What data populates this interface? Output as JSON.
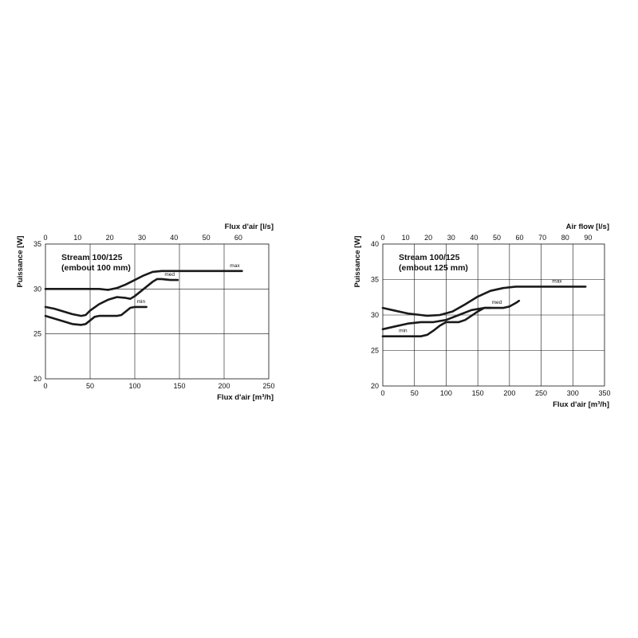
{
  "chart_data": [
    {
      "type": "line",
      "title_lines": [
        "Stream 100/125",
        "(embout 100 mm)"
      ],
      "xlabel": "Flux d'air [m³/h]",
      "x2label": "Flux d'air [l/s]",
      "ylabel": "Puissance [W]",
      "xlim": [
        0,
        250
      ],
      "ylim": [
        20,
        35
      ],
      "xticks": [
        0,
        50,
        100,
        150,
        200,
        250
      ],
      "yticks": [
        20,
        25,
        30,
        35
      ],
      "x2ticks": [
        0,
        10,
        20,
        30,
        40,
        50,
        60
      ],
      "grid": true,
      "series": [
        {
          "name": "max",
          "x": [
            0,
            20,
            40,
            60,
            70,
            80,
            90,
            100,
            110,
            120,
            130,
            140,
            160,
            180,
            200,
            220
          ],
          "y": [
            30,
            30,
            30,
            30,
            29.9,
            30.1,
            30.5,
            31,
            31.5,
            31.9,
            32,
            32,
            32,
            32,
            32,
            32
          ]
        },
        {
          "name": "med",
          "x": [
            0,
            10,
            20,
            30,
            40,
            45,
            50,
            60,
            70,
            80,
            90,
            95,
            100,
            110,
            120,
            125,
            130,
            140,
            148
          ],
          "y": [
            28,
            27.8,
            27.5,
            27.2,
            27,
            27.1,
            27.6,
            28.3,
            28.8,
            29.1,
            29,
            28.9,
            29.2,
            30,
            30.8,
            31.1,
            31.1,
            31,
            31
          ]
        },
        {
          "name": "min",
          "x": [
            0,
            10,
            20,
            30,
            40,
            45,
            50,
            55,
            60,
            70,
            80,
            85,
            90,
            95,
            100,
            105,
            110,
            113
          ],
          "y": [
            27,
            26.7,
            26.4,
            26.1,
            26,
            26.1,
            26.5,
            26.9,
            27,
            27,
            27,
            27.1,
            27.5,
            27.9,
            28,
            28,
            28,
            28
          ]
        }
      ],
      "labels": [
        {
          "text": "max",
          "x": 212,
          "y": 32
        },
        {
          "text": "med",
          "x": 139,
          "y": 31
        },
        {
          "text": "min",
          "x": 107,
          "y": 28
        }
      ]
    },
    {
      "type": "line",
      "title_lines": [
        "Stream 100/125",
        "(embout 125 mm)"
      ],
      "xlabel": "Flux d'air [m³/h]",
      "x2label": "Air flow [l/s]",
      "ylabel": "Puissance [W]",
      "xlim": [
        0,
        350
      ],
      "ylim": [
        20,
        40
      ],
      "xticks": [
        0,
        50,
        100,
        150,
        200,
        250,
        300,
        350
      ],
      "yticks": [
        20,
        25,
        30,
        35,
        40
      ],
      "x2ticks": [
        0,
        10,
        20,
        30,
        40,
        50,
        60,
        70,
        80,
        90
      ],
      "grid": true,
      "series": [
        {
          "name": "max",
          "x": [
            0,
            20,
            40,
            60,
            70,
            90,
            110,
            130,
            150,
            170,
            190,
            210,
            230,
            260,
            290,
            320
          ],
          "y": [
            31,
            30.6,
            30.2,
            30,
            29.9,
            30,
            30.5,
            31.5,
            32.6,
            33.4,
            33.8,
            34,
            34,
            34,
            34,
            34
          ]
        },
        {
          "name": "med",
          "x": [
            0,
            20,
            40,
            60,
            80,
            100,
            120,
            140,
            160,
            175,
            190,
            200,
            210,
            215
          ],
          "y": [
            28,
            28.4,
            28.8,
            29,
            29,
            29.3,
            30,
            30.7,
            31,
            31,
            31,
            31.2,
            31.7,
            32
          ]
        },
        {
          "name": "min",
          "x": [
            0,
            20,
            40,
            60,
            70,
            80,
            90,
            100,
            110,
            120,
            130,
            140,
            150,
            160,
            170
          ],
          "y": [
            27,
            27,
            27,
            27,
            27.2,
            27.8,
            28.5,
            29,
            29,
            29,
            29.3,
            29.9,
            30.5,
            31,
            31
          ]
        }
      ],
      "labels": [
        {
          "text": "max",
          "x": 275,
          "y": 34
        },
        {
          "text": "med",
          "x": 180,
          "y": 31
        },
        {
          "text": "min",
          "x": 32,
          "y": 27
        }
      ]
    }
  ]
}
